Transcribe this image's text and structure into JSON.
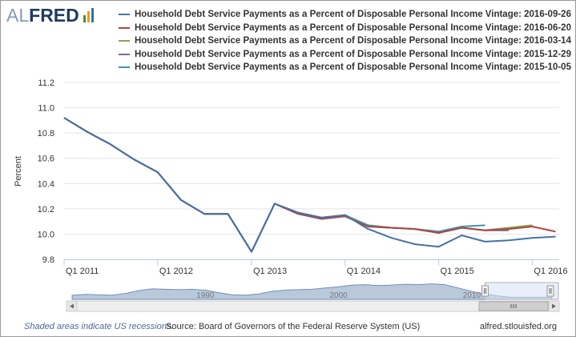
{
  "logo": {
    "text_part1": "AL",
    "text_part2": "FRED",
    "bar_colors": [
      "#4d8a3a",
      "#e0a020",
      "#3a6ea8"
    ]
  },
  "colors": {
    "gridline": "#e4e4e4",
    "axis": "#c0d0e0",
    "navigator_fill": "#b9c9db",
    "navigator_line": "#6f8fb8",
    "navigator_mask": "#d6e2f2",
    "scrollbar_bg": "#eeeeee"
  },
  "chart_data": {
    "type": "line",
    "title": "",
    "xlabel": "",
    "ylabel": "Percent",
    "ylim": [
      9.8,
      11.2
    ],
    "xlim": [
      "2011-01-01",
      "2016-04-15"
    ],
    "yticks": [
      "9.8",
      "10.0",
      "10.2",
      "10.4",
      "10.6",
      "10.8",
      "11.0",
      "11.2"
    ],
    "xticks": [
      {
        "label": "Q1 2011",
        "date": "2011-01-01"
      },
      {
        "label": "Q1 2012",
        "date": "2012-01-01"
      },
      {
        "label": "Q1 2013",
        "date": "2013-01-01"
      },
      {
        "label": "Q1 2014",
        "date": "2014-01-01"
      },
      {
        "label": "Q1 2015",
        "date": "2015-01-01"
      },
      {
        "label": "Q1 2016",
        "date": "2016-01-01"
      }
    ],
    "legend_position": "top",
    "grid": true,
    "series": [
      {
        "name": "Household Debt Service Payments as a Percent of Disposable Personal Income Vintage: 2016-09-26",
        "color": "#4572a7",
        "points": [
          [
            "2011-01-01",
            10.92
          ],
          [
            "2011-04-01",
            10.81
          ],
          [
            "2011-07-01",
            10.71
          ],
          [
            "2011-10-01",
            10.59
          ],
          [
            "2012-01-01",
            10.49
          ],
          [
            "2012-04-01",
            10.27
          ],
          [
            "2012-07-01",
            10.16
          ],
          [
            "2012-10-01",
            10.16
          ],
          [
            "2013-01-01",
            9.86
          ],
          [
            "2013-04-01",
            10.24
          ],
          [
            "2013-07-01",
            10.17
          ],
          [
            "2013-10-01",
            10.13
          ],
          [
            "2014-01-01",
            10.15
          ],
          [
            "2014-04-01",
            10.04
          ],
          [
            "2014-07-01",
            9.97
          ],
          [
            "2014-10-01",
            9.92
          ],
          [
            "2015-01-01",
            9.9
          ],
          [
            "2015-04-01",
            9.99
          ],
          [
            "2015-07-01",
            9.94
          ],
          [
            "2015-10-01",
            9.95
          ],
          [
            "2016-01-01",
            9.97
          ],
          [
            "2016-04-01",
            9.98
          ]
        ]
      },
      {
        "name": "Household Debt Service Payments as a Percent of Disposable Personal Income Vintage: 2016-06-20",
        "color": "#aa4643",
        "points": [
          [
            "2011-01-01",
            10.92
          ],
          [
            "2011-04-01",
            10.81
          ],
          [
            "2011-07-01",
            10.71
          ],
          [
            "2011-10-01",
            10.59
          ],
          [
            "2012-01-01",
            10.49
          ],
          [
            "2012-04-01",
            10.27
          ],
          [
            "2012-07-01",
            10.16
          ],
          [
            "2012-10-01",
            10.16
          ],
          [
            "2013-01-01",
            9.86
          ],
          [
            "2013-04-01",
            10.24
          ],
          [
            "2013-07-01",
            10.16
          ],
          [
            "2013-10-01",
            10.12
          ],
          [
            "2014-01-01",
            10.14
          ],
          [
            "2014-04-01",
            10.06
          ],
          [
            "2014-07-01",
            10.05
          ],
          [
            "2014-10-01",
            10.04
          ],
          [
            "2015-01-01",
            10.01
          ],
          [
            "2015-04-01",
            10.05
          ],
          [
            "2015-07-01",
            10.03
          ],
          [
            "2015-10-01",
            10.04
          ],
          [
            "2016-01-01",
            10.06
          ],
          [
            "2016-04-01",
            10.02
          ]
        ]
      },
      {
        "name": "Household Debt Service Payments as a Percent of Disposable Personal Income Vintage: 2016-03-14",
        "color": "#89a54e",
        "points": [
          [
            "2011-01-01",
            10.92
          ],
          [
            "2011-04-01",
            10.81
          ],
          [
            "2011-07-01",
            10.71
          ],
          [
            "2011-10-01",
            10.59
          ],
          [
            "2012-01-01",
            10.49
          ],
          [
            "2012-04-01",
            10.27
          ],
          [
            "2012-07-01",
            10.16
          ],
          [
            "2012-10-01",
            10.16
          ],
          [
            "2013-01-01",
            9.86
          ],
          [
            "2013-04-01",
            10.24
          ],
          [
            "2013-07-01",
            10.17
          ],
          [
            "2013-10-01",
            10.13
          ],
          [
            "2014-01-01",
            10.15
          ],
          [
            "2014-04-01",
            10.06
          ],
          [
            "2014-07-01",
            10.05
          ],
          [
            "2014-10-01",
            10.04
          ],
          [
            "2015-01-01",
            10.01
          ],
          [
            "2015-04-01",
            10.05
          ],
          [
            "2015-07-01",
            10.03
          ],
          [
            "2015-10-01",
            10.05
          ],
          [
            "2016-01-01",
            10.07
          ]
        ]
      },
      {
        "name": "Household Debt Service Payments as a Percent of Disposable Personal Income Vintage: 2015-12-29",
        "color": "#80699b",
        "points": [
          [
            "2011-01-01",
            10.92
          ],
          [
            "2011-04-01",
            10.81
          ],
          [
            "2011-07-01",
            10.71
          ],
          [
            "2011-10-01",
            10.59
          ],
          [
            "2012-01-01",
            10.49
          ],
          [
            "2012-04-01",
            10.27
          ],
          [
            "2012-07-01",
            10.16
          ],
          [
            "2012-10-01",
            10.16
          ],
          [
            "2013-01-01",
            9.86
          ],
          [
            "2013-04-01",
            10.24
          ],
          [
            "2013-07-01",
            10.17
          ],
          [
            "2013-10-01",
            10.13
          ],
          [
            "2014-01-01",
            10.15
          ],
          [
            "2014-04-01",
            10.06
          ],
          [
            "2014-07-01",
            10.05
          ],
          [
            "2014-10-01",
            10.04
          ],
          [
            "2015-01-01",
            10.01
          ],
          [
            "2015-04-01",
            10.05
          ],
          [
            "2015-07-01",
            10.03
          ],
          [
            "2015-10-01",
            10.03
          ]
        ]
      },
      {
        "name": "Household Debt Service Payments as a Percent of Disposable Personal Income Vintage: 2015-10-05",
        "color": "#3d96ae",
        "points": [
          [
            "2011-01-01",
            10.92
          ],
          [
            "2011-04-01",
            10.81
          ],
          [
            "2011-07-01",
            10.71
          ],
          [
            "2011-10-01",
            10.59
          ],
          [
            "2012-01-01",
            10.49
          ],
          [
            "2012-04-01",
            10.27
          ],
          [
            "2012-07-01",
            10.16
          ],
          [
            "2012-10-01",
            10.16
          ],
          [
            "2013-01-01",
            9.86
          ],
          [
            "2013-04-01",
            10.24
          ],
          [
            "2013-07-01",
            10.17
          ],
          [
            "2013-10-01",
            10.13
          ],
          [
            "2014-01-01",
            10.15
          ],
          [
            "2014-04-01",
            10.07
          ],
          [
            "2014-07-01",
            10.05
          ],
          [
            "2014-10-01",
            10.04
          ],
          [
            "2015-01-01",
            10.02
          ],
          [
            "2015-04-01",
            10.06
          ],
          [
            "2015-07-01",
            10.07
          ]
        ]
      }
    ]
  },
  "navigator": {
    "labels": [
      {
        "text": "1990",
        "year": 1990
      },
      {
        "text": "2000",
        "year": 2000
      },
      {
        "text": "2010",
        "year": 2010
      }
    ],
    "range_years": [
      1980,
      2016.5
    ],
    "profile": [
      [
        1980,
        10.5
      ],
      [
        1981,
        10.7
      ],
      [
        1982,
        10.6
      ],
      [
        1983,
        10.5
      ],
      [
        1984,
        10.9
      ],
      [
        1985,
        11.6
      ],
      [
        1986,
        12.0
      ],
      [
        1987,
        11.9
      ],
      [
        1988,
        11.8
      ],
      [
        1989,
        11.9
      ],
      [
        1990,
        11.7
      ],
      [
        1991,
        11.1
      ],
      [
        1992,
        10.6
      ],
      [
        1993,
        10.5
      ],
      [
        1994,
        10.8
      ],
      [
        1995,
        11.4
      ],
      [
        1996,
        11.7
      ],
      [
        1997,
        11.8
      ],
      [
        1998,
        11.9
      ],
      [
        1999,
        12.2
      ],
      [
        2000,
        12.5
      ],
      [
        2001,
        12.9
      ],
      [
        2002,
        13.0
      ],
      [
        2003,
        12.8
      ],
      [
        2004,
        12.9
      ],
      [
        2005,
        13.1
      ],
      [
        2006,
        13.0
      ],
      [
        2007,
        13.2
      ],
      [
        2008,
        13.0
      ],
      [
        2009,
        12.2
      ],
      [
        2010,
        11.4
      ],
      [
        2011,
        10.8
      ],
      [
        2012,
        10.3
      ],
      [
        2013,
        10.0
      ],
      [
        2014,
        10.0
      ],
      [
        2015,
        10.0
      ],
      [
        2016,
        10.0
      ]
    ],
    "selected_years": [
      2011,
      2016.5
    ]
  },
  "footer": {
    "recession_note": "Shaded areas indicate US recessions.",
    "source": "Source: Board of Governors of the Federal Reserve System (US)",
    "site": "alfred.stlouisfed.org"
  }
}
